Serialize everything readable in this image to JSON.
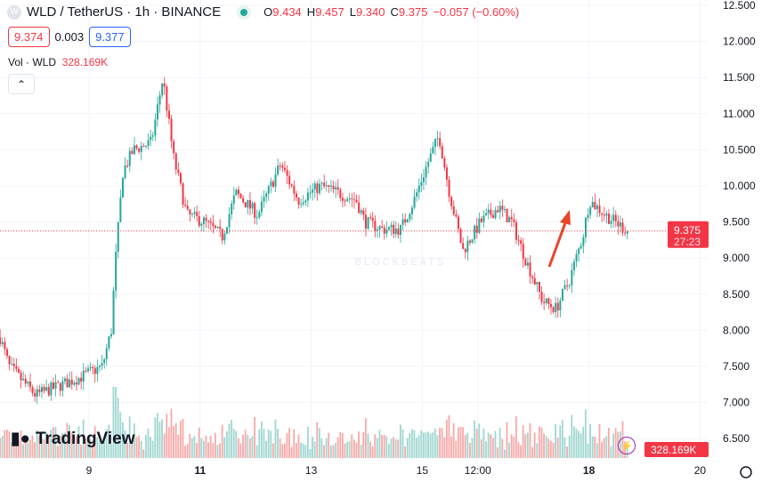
{
  "header": {
    "symbol": "WLD / TetherUS · 1h · BINANCE",
    "logo_letter": "W",
    "o_label": "O",
    "o": "9.434",
    "h_label": "H",
    "h": "9.457",
    "l_label": "L",
    "l": "9.340",
    "c_label": "C",
    "c": "9.375",
    "change": "−0.057 (−0.60%)"
  },
  "quote": {
    "bid": "9.374",
    "spread": "0.003",
    "ask": "9.377"
  },
  "volume": {
    "label": "Vol · WLD",
    "value": "328.169K"
  },
  "collapse_icon": "chevron-up-icon",
  "branding": {
    "name": "TradingView",
    "watermark": "BLOCKBEATS"
  },
  "colors": {
    "up": "#26a69a",
    "down": "#f23645",
    "up_vol": "#9fd7d1",
    "down_vol": "#f7a9a7",
    "arrow": "#e8462b"
  },
  "chart_data": {
    "type": "candlestick",
    "interval": "1h",
    "ylim": [
      6.3,
      12.6
    ],
    "xlim": [
      7.4,
      20.0
    ],
    "y_ticks": [
      "6.500",
      "7.000",
      "7.500",
      "8.000",
      "8.500",
      "9.000",
      "9.500",
      "10.000",
      "10.500",
      "11.000",
      "11.500",
      "12.000",
      "12.500"
    ],
    "x_ticks": [
      {
        "v": 9,
        "label": "9"
      },
      {
        "v": 11,
        "label": "11"
      },
      {
        "v": 13,
        "label": "13"
      },
      {
        "v": 15,
        "label": "15"
      },
      {
        "v": 16,
        "label": "12:00"
      },
      {
        "v": 18,
        "label": "18"
      },
      {
        "v": 20,
        "label": "20"
      }
    ],
    "last_price": "9.375",
    "countdown": "27:23",
    "last_volume": "328.169K",
    "close_path": [
      [
        7.4,
        7.9
      ],
      [
        7.56,
        7.5
      ],
      [
        8.04,
        7.1
      ],
      [
        8.84,
        7.35
      ],
      [
        9.24,
        7.5
      ],
      [
        9.4,
        8.0
      ],
      [
        9.48,
        9.0
      ],
      [
        9.61,
        10.2
      ],
      [
        9.8,
        10.5
      ],
      [
        10.12,
        10.6
      ],
      [
        10.33,
        11.5
      ],
      [
        10.52,
        10.4
      ],
      [
        10.76,
        9.6
      ],
      [
        11.08,
        9.5
      ],
      [
        11.4,
        9.3
      ],
      [
        11.64,
        9.9
      ],
      [
        12.04,
        9.6
      ],
      [
        12.45,
        10.3
      ],
      [
        12.77,
        9.8
      ],
      [
        13.17,
        10.0
      ],
      [
        13.49,
        9.9
      ],
      [
        13.81,
        9.8
      ],
      [
        13.97,
        9.5
      ],
      [
        14.29,
        9.4
      ],
      [
        14.61,
        9.4
      ],
      [
        14.85,
        9.8
      ],
      [
        15.09,
        10.3
      ],
      [
        15.3,
        10.7
      ],
      [
        15.49,
        9.9
      ],
      [
        15.73,
        9.1
      ],
      [
        16.05,
        9.5
      ],
      [
        16.37,
        9.7
      ],
      [
        16.61,
        9.5
      ],
      [
        16.85,
        9.0
      ],
      [
        17.17,
        8.4
      ],
      [
        17.41,
        8.3
      ],
      [
        17.65,
        8.7
      ],
      [
        17.89,
        9.3
      ],
      [
        18.01,
        9.8
      ],
      [
        18.29,
        9.6
      ],
      [
        18.7,
        9.375
      ]
    ],
    "annotation": "up-arrow"
  }
}
